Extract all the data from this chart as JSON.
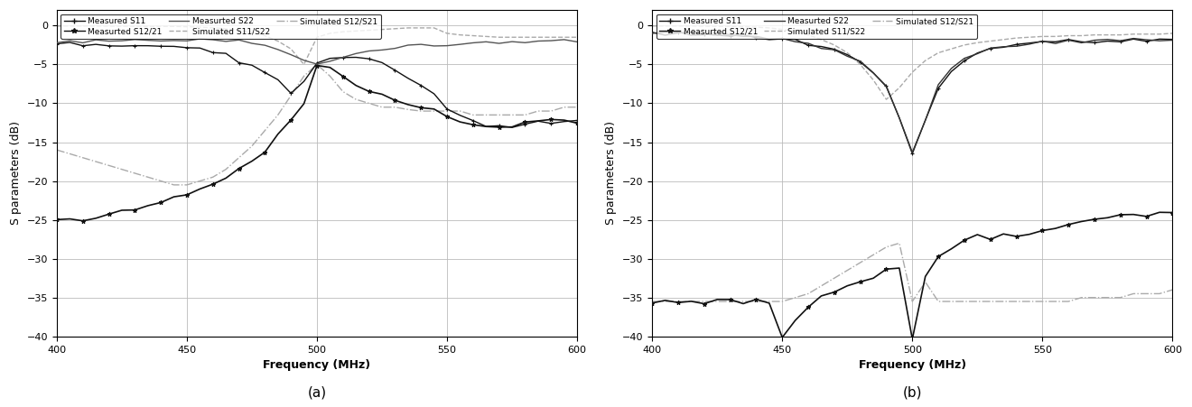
{
  "freq": [
    400,
    405,
    410,
    415,
    420,
    425,
    430,
    435,
    440,
    445,
    450,
    455,
    460,
    465,
    470,
    475,
    480,
    485,
    490,
    495,
    500,
    505,
    510,
    515,
    520,
    525,
    530,
    535,
    540,
    545,
    550,
    555,
    560,
    565,
    570,
    575,
    580,
    585,
    590,
    595,
    600
  ],
  "panel_a": {
    "meas_S11": [
      -2.3,
      -2.3,
      -2.3,
      -2.3,
      -2.4,
      -2.4,
      -2.4,
      -2.5,
      -2.6,
      -2.7,
      -2.8,
      -3.0,
      -3.3,
      -3.8,
      -4.5,
      -5.2,
      -6.0,
      -7.0,
      -8.5,
      -7.0,
      -5.0,
      -4.5,
      -4.0,
      -4.2,
      -4.5,
      -5.0,
      -5.5,
      -6.5,
      -7.5,
      -9.0,
      -10.5,
      -11.5,
      -12.5,
      -13.0,
      -13.0,
      -13.0,
      -12.8,
      -12.5,
      -12.3,
      -12.5,
      -12.5
    ],
    "meas_S22": [
      -2.1,
      -2.1,
      -2.1,
      -2.0,
      -2.0,
      -2.0,
      -1.9,
      -1.9,
      -1.9,
      -1.8,
      -1.8,
      -1.8,
      -1.8,
      -1.9,
      -2.0,
      -2.2,
      -2.5,
      -3.0,
      -3.8,
      -4.5,
      -5.0,
      -4.5,
      -4.0,
      -3.5,
      -3.2,
      -3.0,
      -2.8,
      -2.7,
      -2.6,
      -2.5,
      -2.4,
      -2.3,
      -2.3,
      -2.2,
      -2.1,
      -2.1,
      -2.0,
      -2.0,
      -2.0,
      -2.0,
      -2.0
    ],
    "meas_S1221": [
      -25.0,
      -25.0,
      -25.0,
      -24.8,
      -24.5,
      -24.0,
      -23.5,
      -23.0,
      -22.5,
      -22.0,
      -21.5,
      -21.0,
      -20.5,
      -19.5,
      -18.5,
      -17.5,
      -16.0,
      -14.0,
      -12.0,
      -10.0,
      -5.0,
      -5.5,
      -6.5,
      -7.5,
      -8.5,
      -9.0,
      -9.5,
      -10.0,
      -10.5,
      -11.0,
      -12.0,
      -12.5,
      -13.0,
      -13.2,
      -13.0,
      -12.8,
      -12.5,
      -12.3,
      -12.0,
      -12.0,
      -12.5
    ],
    "sim_S1122": [
      -0.05,
      -0.05,
      -0.05,
      -0.05,
      -0.08,
      -0.08,
      -0.1,
      -0.1,
      -0.1,
      -0.1,
      -0.15,
      -0.2,
      -0.3,
      -0.4,
      -0.6,
      -0.9,
      -1.3,
      -2.0,
      -3.0,
      -5.0,
      -1.5,
      -1.0,
      -0.8,
      -0.7,
      -0.6,
      -0.5,
      -0.4,
      -0.3,
      -0.3,
      -0.3,
      -1.0,
      -1.2,
      -1.3,
      -1.4,
      -1.5,
      -1.5,
      -1.5,
      -1.5,
      -1.5,
      -1.5,
      -1.5
    ],
    "sim_S1221_a": [
      -16.0,
      -16.5,
      -17.0,
      -17.5,
      -18.0,
      -18.5,
      -19.0,
      -19.5,
      -20.0,
      -20.5,
      -20.5,
      -20.0,
      -19.5,
      -18.5,
      -17.0,
      -15.5,
      -13.5,
      -11.5,
      -9.0,
      -6.5,
      -5.0,
      -6.5,
      -8.5,
      -9.5,
      -10.0,
      -10.5,
      -10.5,
      -10.8,
      -11.0,
      -11.0,
      -11.0,
      -11.0,
      -11.5,
      -11.5,
      -11.5,
      -11.5,
      -11.5,
      -11.0,
      -11.0,
      -10.5,
      -10.5
    ]
  },
  "panel_b": {
    "meas_S11": [
      -1.0,
      -1.0,
      -1.0,
      -1.0,
      -1.1,
      -1.1,
      -1.2,
      -1.3,
      -1.4,
      -1.6,
      -1.8,
      -2.0,
      -2.3,
      -2.7,
      -3.2,
      -3.8,
      -4.8,
      -6.0,
      -8.0,
      -12.0,
      -16.5,
      -12.0,
      -8.0,
      -6.0,
      -4.5,
      -3.5,
      -3.0,
      -2.8,
      -2.5,
      -2.3,
      -2.2,
      -2.1,
      -2.0,
      -2.0,
      -2.0,
      -1.9,
      -1.9,
      -1.9,
      -1.8,
      -1.8,
      -1.8
    ],
    "meas_S22": [
      -1.0,
      -1.0,
      -1.0,
      -1.0,
      -1.1,
      -1.1,
      -1.2,
      -1.3,
      -1.4,
      -1.6,
      -1.8,
      -2.0,
      -2.3,
      -2.7,
      -3.2,
      -3.8,
      -4.8,
      -6.0,
      -8.0,
      -12.0,
      -16.5,
      -12.0,
      -7.5,
      -5.5,
      -4.3,
      -3.5,
      -3.0,
      -2.8,
      -2.5,
      -2.3,
      -2.2,
      -2.1,
      -2.0,
      -2.0,
      -2.0,
      -1.9,
      -1.9,
      -1.9,
      -1.8,
      -1.8,
      -1.8
    ],
    "meas_S1221": [
      -35.5,
      -35.5,
      -35.5,
      -35.5,
      -35.5,
      -35.5,
      -35.5,
      -35.5,
      -35.5,
      -35.5,
      -40.0,
      -38.0,
      -36.5,
      -35.0,
      -34.0,
      -33.5,
      -33.0,
      -32.5,
      -31.5,
      -31.0,
      -40.5,
      -32.0,
      -29.5,
      -28.5,
      -27.5,
      -27.0,
      -27.5,
      -27.0,
      -27.0,
      -27.0,
      -26.5,
      -26.0,
      -25.5,
      -25.5,
      -25.0,
      -25.0,
      -24.5,
      -24.5,
      -24.5,
      -24.0,
      -24.0
    ],
    "sim_S1122": [
      -0.05,
      -0.05,
      -0.05,
      -0.05,
      -0.08,
      -0.1,
      -0.1,
      -0.15,
      -0.2,
      -0.3,
      -0.5,
      -0.8,
      -1.2,
      -1.8,
      -2.5,
      -3.5,
      -5.0,
      -7.0,
      -9.5,
      -8.0,
      -6.0,
      -4.5,
      -3.5,
      -3.0,
      -2.5,
      -2.2,
      -2.0,
      -1.8,
      -1.6,
      -1.5,
      -1.4,
      -1.4,
      -1.3,
      -1.3,
      -1.2,
      -1.2,
      -1.2,
      -1.1,
      -1.1,
      -1.1,
      -1.0
    ],
    "sim_S1221_b": [
      -35.5,
      -35.5,
      -35.5,
      -35.5,
      -35.5,
      -35.5,
      -35.5,
      -35.5,
      -35.5,
      -35.5,
      -35.5,
      -35.0,
      -34.5,
      -33.5,
      -32.5,
      -31.5,
      -30.5,
      -29.5,
      -28.5,
      -28.0,
      -35.5,
      -33.0,
      -35.5,
      -35.5,
      -35.5,
      -35.5,
      -35.5,
      -35.5,
      -35.5,
      -35.5,
      -35.5,
      -35.5,
      -35.5,
      -35.0,
      -35.0,
      -35.0,
      -35.0,
      -34.5,
      -34.5,
      -34.5,
      -34.0
    ]
  },
  "xlim": [
    400,
    600
  ],
  "ylim": [
    -40,
    2
  ],
  "yticks": [
    0,
    -5,
    -10,
    -15,
    -20,
    -25,
    -30,
    -35,
    -40
  ],
  "xticks": [
    400,
    450,
    500,
    550,
    600
  ],
  "xlabel": "Frequency (MHz)",
  "ylabel": "S parameters (dB)",
  "label_a_meas_S11": "Measured S11",
  "label_a_meas_S1221": "Measurted S12/21",
  "label_a_meas_S22": "Measurted S22",
  "label_a_sim_S1122": "Simulated S11/S22",
  "label_a_sim_S1221": "Simulated S12/S21",
  "label_b_meas_S11": "Measured S11",
  "label_b_meas_S1221": "Measurted S12/21",
  "label_b_meas_S22": "Measurted S22",
  "label_b_sim_S1122": "Simulated S11/S22",
  "label_b_sim_S1221": "Simulated S12/S21",
  "caption_a": "(a)",
  "caption_b": "(b)"
}
